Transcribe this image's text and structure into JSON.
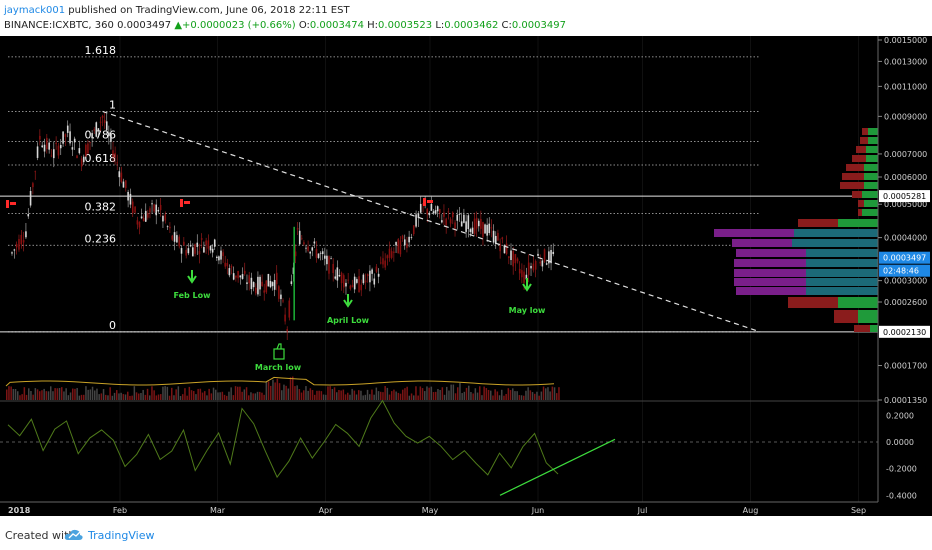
{
  "header": {
    "author": "jaymack001",
    "published_text": "published on TradingView.com, June 06, 2018 22:11 EST",
    "symbol": "BINANCE:ICXBTC, 360",
    "last": "0.0003497",
    "change": "+0.0000023 (+0.66%)",
    "o_label": "O:",
    "o_value": "0.0003474",
    "h_label": "H:",
    "h_value": "0.0003523",
    "l_label": "L:",
    "l_value": "0.0003462",
    "c_label": "C:",
    "c_value": "0.0003497"
  },
  "footer": {
    "created_with": "Created with",
    "brand": "TradingView"
  },
  "colors": {
    "background": "#000000",
    "up": "#26a69a",
    "down": "#ef5350",
    "annotation_green": "#3ddc3d",
    "price_axis_label": "#1e88e5",
    "volume_profile_up": "#1c6a78",
    "volume_profile_down": "#8a1c1c",
    "volume_profile_value_area": "#7a1f8a",
    "oscillator_line": "#4f7a1a"
  },
  "chart_data": {
    "type": "candlestick",
    "x_axis_labels": [
      "2018",
      "Feb",
      "Mar",
      "Apr",
      "May",
      "Jun",
      "Jul",
      "Aug",
      "Sep"
    ],
    "price_axis": {
      "ticks": [
        "0.0015000",
        "0.0013000",
        "0.0011000",
        "0.0009000",
        "0.0007000",
        "0.0006000",
        "0.0005000",
        "0.0004000",
        "0.0003000",
        "0.0002600",
        "0.0001700",
        "0.0001350"
      ],
      "highlight_labels": [
        "0.0005281",
        "0.0003497",
        "02:48:46",
        "0.0002130"
      ],
      "scale": "log"
    },
    "fibonacci_levels": [
      {
        "label": "1.618",
        "price": 0.00134
      },
      {
        "label": "1",
        "price": 0.00093
      },
      {
        "label": "0.786",
        "price": 0.00076
      },
      {
        "label": "0.618",
        "price": 0.00065
      },
      {
        "label": "0.382",
        "price": 0.00047
      },
      {
        "label": "0.236",
        "price": 0.00038
      },
      {
        "label": "0",
        "price": 0.000213
      }
    ],
    "horizontal_lines": [
      0.0005281,
      0.000213
    ],
    "annotations": [
      "Feb Low",
      "April Low",
      "May low",
      "March low"
    ],
    "price_path": [
      {
        "date": "2018-01-01",
        "price": 0.00036
      },
      {
        "date": "2018-01-05",
        "price": 0.00042
      },
      {
        "date": "2018-01-09",
        "price": 0.00078
      },
      {
        "date": "2018-01-13",
        "price": 0.0007
      },
      {
        "date": "2018-01-17",
        "price": 0.00081
      },
      {
        "date": "2018-01-21",
        "price": 0.00068
      },
      {
        "date": "2018-01-27",
        "price": 0.0009
      },
      {
        "date": "2018-02-02",
        "price": 0.00058
      },
      {
        "date": "2018-02-06",
        "price": 0.00045
      },
      {
        "date": "2018-02-12",
        "price": 0.00049
      },
      {
        "date": "2018-02-16",
        "price": 0.0004
      },
      {
        "date": "2018-02-20",
        "price": 0.00037
      },
      {
        "date": "2018-02-27",
        "price": 0.00039
      },
      {
        "date": "2018-03-05",
        "price": 0.00032
      },
      {
        "date": "2018-03-12",
        "price": 0.00029
      },
      {
        "date": "2018-03-18",
        "price": 0.0003
      },
      {
        "date": "2018-03-21",
        "price": 0.00022
      },
      {
        "date": "2018-03-24",
        "price": 0.00041
      },
      {
        "date": "2018-03-30",
        "price": 0.00036
      },
      {
        "date": "2018-04-05",
        "price": 0.00031
      },
      {
        "date": "2018-04-10",
        "price": 0.00029
      },
      {
        "date": "2018-04-15",
        "price": 0.00031
      },
      {
        "date": "2018-04-20",
        "price": 0.00036
      },
      {
        "date": "2018-04-25",
        "price": 0.0004
      },
      {
        "date": "2018-04-29",
        "price": 0.00049
      },
      {
        "date": "2018-05-05",
        "price": 0.00046
      },
      {
        "date": "2018-05-12",
        "price": 0.00044
      },
      {
        "date": "2018-05-18",
        "price": 0.00042
      },
      {
        "date": "2018-05-23",
        "price": 0.00037
      },
      {
        "date": "2018-05-28",
        "price": 0.00031
      },
      {
        "date": "2018-06-01",
        "price": 0.00035
      },
      {
        "date": "2018-06-06",
        "price": 0.0003497
      }
    ],
    "oscillator": {
      "ticks": [
        "0.2000",
        "0.0000",
        "-0.2000",
        "-0.4000"
      ],
      "ylim": [
        -0.45,
        0.3
      ],
      "values": [
        0.12,
        0.05,
        0.16,
        -0.05,
        0.08,
        0.14,
        -0.1,
        0.02,
        0.1,
        0.03,
        -0.18,
        -0.08,
        0.06,
        -0.12,
        -0.05,
        0.1,
        -0.22,
        -0.06,
        0.05,
        -0.15,
        0.25,
        0.12,
        -0.05,
        -0.28,
        -0.15,
        0.02,
        -0.14,
        0.0,
        0.12,
        0.08,
        -0.05,
        0.18,
        0.3,
        0.15,
        0.05,
        0.0,
        0.06,
        -0.04,
        -0.12,
        -0.07,
        -0.18,
        -0.26,
        -0.08,
        -0.2,
        -0.04,
        0.05,
        -0.14,
        -0.22
      ]
    }
  }
}
